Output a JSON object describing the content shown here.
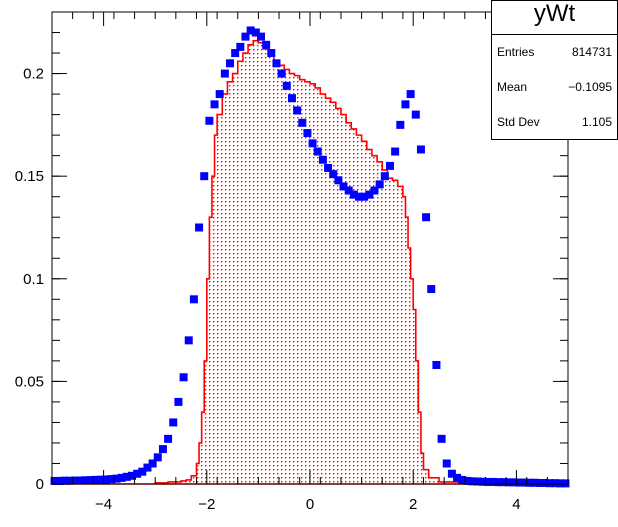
{
  "chart_data": {
    "type": "histogram",
    "title": "",
    "xlabel": "",
    "ylabel": "",
    "xlim": [
      -5,
      5
    ],
    "ylim": [
      0,
      0.23
    ],
    "x_ticks": [
      -4,
      -2,
      0,
      2,
      4
    ],
    "x_tick_labels": [
      "−4",
      "−2",
      "0",
      "2",
      "4"
    ],
    "y_ticks": [
      0,
      0.05,
      0.1,
      0.15,
      0.2
    ],
    "y_tick_labels": [
      "0",
      "0.05",
      "0.1",
      "0.15",
      "0.2"
    ],
    "grid": false,
    "stats_box": {
      "title": "yWt",
      "entries_label": "Entries",
      "entries_value": "814731",
      "mean_label": "Mean",
      "mean_value": "−0.1095",
      "stddev_label": "Std Dev",
      "stddev_value": "1.105"
    },
    "series": [
      {
        "kind": "filled-histogram",
        "color": "#ff0000",
        "fill_pattern": "dotted",
        "x": [
          -5.0,
          -4.5,
          -4.0,
          -3.5,
          -3.0,
          -2.75,
          -2.5,
          -2.4,
          -2.3,
          -2.2,
          -2.15,
          -2.1,
          -2.05,
          -2.0,
          -1.95,
          -1.9,
          -1.85,
          -1.8,
          -1.7,
          -1.6,
          -1.5,
          -1.4,
          -1.3,
          -1.2,
          -1.1,
          -1.0,
          -0.9,
          -0.8,
          -0.7,
          -0.6,
          -0.5,
          -0.4,
          -0.3,
          -0.2,
          -0.1,
          0.0,
          0.1,
          0.2,
          0.3,
          0.4,
          0.5,
          0.6,
          0.7,
          0.8,
          0.9,
          1.0,
          1.1,
          1.2,
          1.3,
          1.4,
          1.5,
          1.6,
          1.7,
          1.8,
          1.85,
          1.9,
          1.95,
          2.0,
          2.05,
          2.1,
          2.15,
          2.2,
          2.3,
          2.5,
          3.0,
          3.5,
          4.0,
          5.0
        ],
        "y": [
          0.0,
          0.0,
          0.0,
          0.0,
          0.0005,
          0.001,
          0.0015,
          0.002,
          0.004,
          0.01,
          0.02,
          0.035,
          0.06,
          0.1,
          0.13,
          0.15,
          0.17,
          0.18,
          0.19,
          0.196,
          0.2,
          0.206,
          0.21,
          0.214,
          0.216,
          0.215,
          0.212,
          0.209,
          0.206,
          0.204,
          0.202,
          0.2,
          0.199,
          0.197,
          0.196,
          0.195,
          0.193,
          0.19,
          0.188,
          0.186,
          0.183,
          0.18,
          0.176,
          0.173,
          0.17,
          0.167,
          0.163,
          0.16,
          0.157,
          0.153,
          0.149,
          0.148,
          0.145,
          0.14,
          0.13,
          0.115,
          0.1,
          0.085,
          0.06,
          0.035,
          0.015,
          0.007,
          0.003,
          0.001,
          0.0005,
          0.0,
          0.0,
          0.0
        ]
      },
      {
        "kind": "markers",
        "color": "#0000ff",
        "marker": "square",
        "x": [
          -4.95,
          -4.85,
          -4.75,
          -4.65,
          -4.55,
          -4.45,
          -4.35,
          -4.25,
          -4.15,
          -4.05,
          -3.95,
          -3.85,
          -3.75,
          -3.65,
          -3.55,
          -3.45,
          -3.35,
          -3.25,
          -3.15,
          -3.05,
          -2.95,
          -2.85,
          -2.75,
          -2.65,
          -2.55,
          -2.45,
          -2.35,
          -2.25,
          -2.15,
          -2.05,
          -1.95,
          -1.85,
          -1.75,
          -1.65,
          -1.55,
          -1.45,
          -1.35,
          -1.25,
          -1.15,
          -1.05,
          -0.95,
          -0.85,
          -0.75,
          -0.65,
          -0.55,
          -0.45,
          -0.35,
          -0.25,
          -0.15,
          -0.05,
          0.05,
          0.15,
          0.25,
          0.35,
          0.45,
          0.55,
          0.65,
          0.75,
          0.85,
          0.95,
          1.05,
          1.15,
          1.25,
          1.35,
          1.45,
          1.55,
          1.65,
          1.75,
          1.85,
          1.95,
          2.05,
          2.15,
          2.25,
          2.35,
          2.45,
          2.55,
          2.65,
          2.75,
          2.85,
          2.95,
          3.05,
          3.15,
          3.25,
          3.35,
          3.45,
          3.55,
          3.65,
          3.75,
          3.85,
          3.95,
          4.05,
          4.15,
          4.25,
          4.35,
          4.45,
          4.55,
          4.65,
          4.75,
          4.85,
          4.95
        ],
        "y": [
          0.0015,
          0.0015,
          0.0016,
          0.0016,
          0.0017,
          0.0017,
          0.0018,
          0.0019,
          0.002,
          0.0021,
          0.0022,
          0.0024,
          0.0026,
          0.003,
          0.0035,
          0.004,
          0.005,
          0.006,
          0.008,
          0.01,
          0.013,
          0.017,
          0.022,
          0.03,
          0.04,
          0.052,
          0.07,
          0.09,
          0.125,
          0.15,
          0.177,
          0.185,
          0.19,
          0.2,
          0.205,
          0.21,
          0.213,
          0.218,
          0.221,
          0.22,
          0.218,
          0.214,
          0.21,
          0.205,
          0.2,
          0.194,
          0.188,
          0.182,
          0.176,
          0.171,
          0.166,
          0.162,
          0.158,
          0.154,
          0.151,
          0.148,
          0.145,
          0.143,
          0.141,
          0.14,
          0.14,
          0.141,
          0.143,
          0.146,
          0.15,
          0.155,
          0.162,
          0.175,
          0.185,
          0.19,
          0.18,
          0.163,
          0.13,
          0.095,
          0.058,
          0.022,
          0.01,
          0.005,
          0.003,
          0.002,
          0.0015,
          0.0013,
          0.0012,
          0.0011,
          0.001,
          0.001,
          0.0009,
          0.0009,
          0.0008,
          0.0008,
          0.0007,
          0.0007,
          0.0006,
          0.0006,
          0.0005,
          0.0005,
          0.0004,
          0.0004,
          0.0003,
          0.0003
        ]
      }
    ]
  }
}
